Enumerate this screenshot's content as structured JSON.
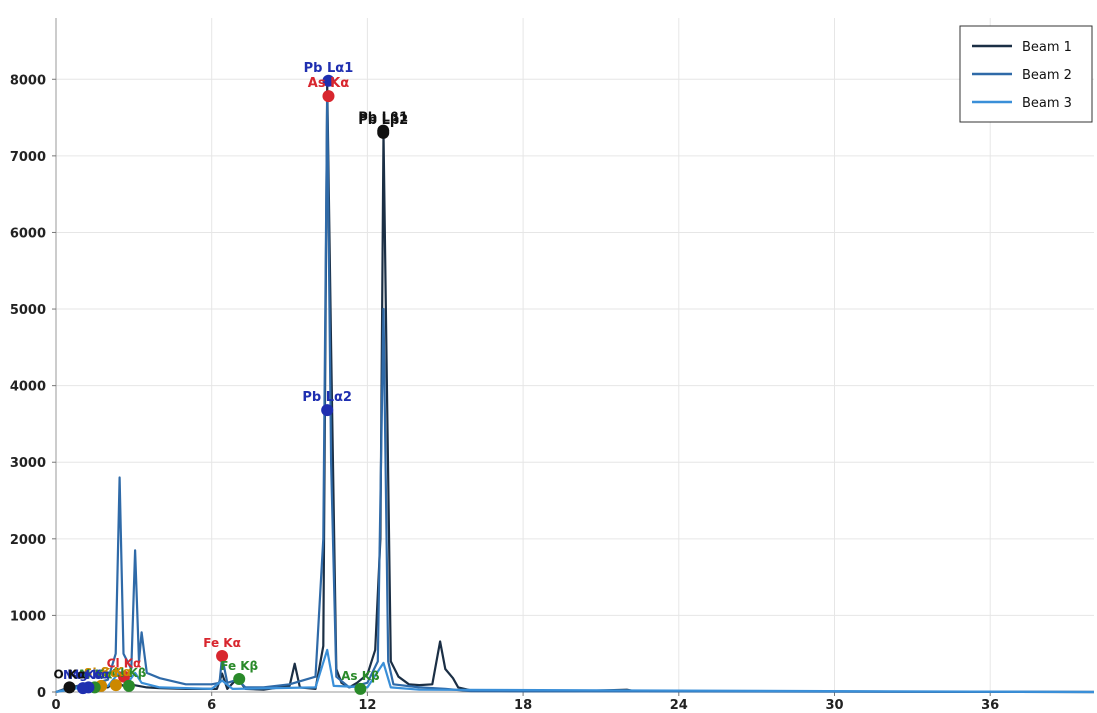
{
  "chart_data": {
    "type": "line",
    "title": "",
    "xlabel": "",
    "ylabel": "",
    "xlim": [
      0,
      40
    ],
    "ylim": [
      0,
      8800
    ],
    "x_ticks": [
      0,
      6,
      12,
      18,
      24,
      30,
      36
    ],
    "y_ticks": [
      0,
      1000,
      2000,
      3000,
      4000,
      5000,
      6000,
      7000,
      8000
    ],
    "grid": true,
    "legend": "top-right",
    "series": [
      {
        "name": "Beam 1",
        "color": "#1b2f45",
        "points": [
          [
            0,
            0
          ],
          [
            0.5,
            60
          ],
          [
            1,
            90
          ],
          [
            1.5,
            70
          ],
          [
            2,
            60
          ],
          [
            2.3,
            140
          ],
          [
            2.6,
            80
          ],
          [
            3,
            90
          ],
          [
            3.5,
            60
          ],
          [
            4,
            50
          ],
          [
            5,
            40
          ],
          [
            6,
            40
          ],
          [
            6.2,
            40
          ],
          [
            6.4,
            240
          ],
          [
            6.6,
            40
          ],
          [
            7,
            180
          ],
          [
            7.3,
            40
          ],
          [
            8,
            30
          ],
          [
            9,
            80
          ],
          [
            9.2,
            370
          ],
          [
            9.4,
            60
          ],
          [
            10,
            40
          ],
          [
            10.3,
            600
          ],
          [
            10.45,
            7950
          ],
          [
            10.6,
            4500
          ],
          [
            10.8,
            300
          ],
          [
            11,
            120
          ],
          [
            11.3,
            60
          ],
          [
            11.6,
            120
          ],
          [
            12,
            230
          ],
          [
            12.3,
            550
          ],
          [
            12.5,
            2000
          ],
          [
            12.62,
            7300
          ],
          [
            12.75,
            4000
          ],
          [
            12.9,
            400
          ],
          [
            13.2,
            200
          ],
          [
            13.6,
            100
          ],
          [
            14,
            90
          ],
          [
            14.5,
            100
          ],
          [
            14.8,
            660
          ],
          [
            15.0,
            300
          ],
          [
            15.3,
            180
          ],
          [
            15.5,
            60
          ],
          [
            16,
            20
          ],
          [
            18,
            10
          ],
          [
            20,
            10
          ],
          [
            22,
            30
          ],
          [
            22.3,
            10
          ],
          [
            24,
            10
          ],
          [
            25,
            10
          ],
          [
            40,
            0
          ]
        ]
      },
      {
        "name": "Beam 2",
        "color": "#2f6aa8",
        "points": [
          [
            0,
            0
          ],
          [
            0.5,
            50
          ],
          [
            1,
            90
          ],
          [
            1.5,
            110
          ],
          [
            2,
            160
          ],
          [
            2.3,
            500
          ],
          [
            2.45,
            2800
          ],
          [
            2.6,
            500
          ],
          [
            2.9,
            300
          ],
          [
            3.05,
            1850
          ],
          [
            3.2,
            400
          ],
          [
            3.3,
            780
          ],
          [
            3.5,
            250
          ],
          [
            4,
            180
          ],
          [
            5,
            100
          ],
          [
            6,
            100
          ],
          [
            6.3,
            120
          ],
          [
            6.4,
            460
          ],
          [
            6.6,
            120
          ],
          [
            7,
            160
          ],
          [
            7.3,
            60
          ],
          [
            8,
            60
          ],
          [
            9,
            100
          ],
          [
            10,
            200
          ],
          [
            10.3,
            2000
          ],
          [
            10.45,
            7800
          ],
          [
            10.6,
            3000
          ],
          [
            10.8,
            200
          ],
          [
            11.3,
            60
          ],
          [
            12,
            120
          ],
          [
            12.4,
            400
          ],
          [
            12.62,
            5000
          ],
          [
            12.8,
            400
          ],
          [
            13,
            100
          ],
          [
            14,
            60
          ],
          [
            15,
            40
          ],
          [
            16,
            10
          ],
          [
            40,
            0
          ]
        ]
      },
      {
        "name": "Beam 3",
        "color": "#3a8fd8",
        "points": [
          [
            0,
            0
          ],
          [
            1,
            60
          ],
          [
            2,
            80
          ],
          [
            2.45,
            260
          ],
          [
            2.7,
            90
          ],
          [
            3.05,
            250
          ],
          [
            3.3,
            120
          ],
          [
            4,
            60
          ],
          [
            6,
            40
          ],
          [
            6.4,
            150
          ],
          [
            6.8,
            40
          ],
          [
            10,
            60
          ],
          [
            10.45,
            550
          ],
          [
            10.7,
            80
          ],
          [
            12,
            60
          ],
          [
            12.62,
            380
          ],
          [
            12.9,
            60
          ],
          [
            14,
            30
          ],
          [
            40,
            0
          ]
        ]
      }
    ],
    "peaks": [
      {
        "label": "Pb Lα1",
        "x": 10.5,
        "y": 7980,
        "color": "#1f2fb0"
      },
      {
        "label": "As Kα",
        "x": 10.5,
        "y": 7780,
        "color": "#d8262e"
      },
      {
        "label": "Pb Lβ1",
        "x": 12.61,
        "y": 7330,
        "color": "#111111"
      },
      {
        "label": "Pb Lβ2",
        "x": 12.61,
        "y": 7300,
        "color": "#111111"
      },
      {
        "label": "Pb Lα2",
        "x": 10.45,
        "y": 3680,
        "color": "#1f2fb0"
      },
      {
        "label": "Fe Kα",
        "x": 6.4,
        "y": 470,
        "color": "#d8262e"
      },
      {
        "label": "Fe Kβ",
        "x": 7.06,
        "y": 170,
        "color": "#2a8a2a"
      },
      {
        "label": "As Kβ",
        "x": 11.73,
        "y": 40,
        "color": "#2a8a2a"
      },
      {
        "label": "Cl Kα",
        "x": 2.62,
        "y": 200,
        "color": "#d8262e"
      },
      {
        "label": "Cl Kβ",
        "x": 2.81,
        "y": 80,
        "color": "#2a8a2a"
      },
      {
        "label": "S Kα",
        "x": 2.31,
        "y": 90,
        "color": "#cc8800"
      },
      {
        "label": "Si Kα",
        "x": 1.74,
        "y": 80,
        "color": "#cc8800"
      },
      {
        "label": "Al Kα",
        "x": 1.49,
        "y": 60,
        "color": "#2a8a2a"
      },
      {
        "label": "Mg Kα",
        "x": 1.25,
        "y": 60,
        "color": "#1f2fb0"
      },
      {
        "label": "Na Kα",
        "x": 1.04,
        "y": 50,
        "color": "#1f2fb0"
      },
      {
        "label": "O Kα",
        "x": 0.52,
        "y": 60,
        "color": "#111111"
      }
    ]
  }
}
